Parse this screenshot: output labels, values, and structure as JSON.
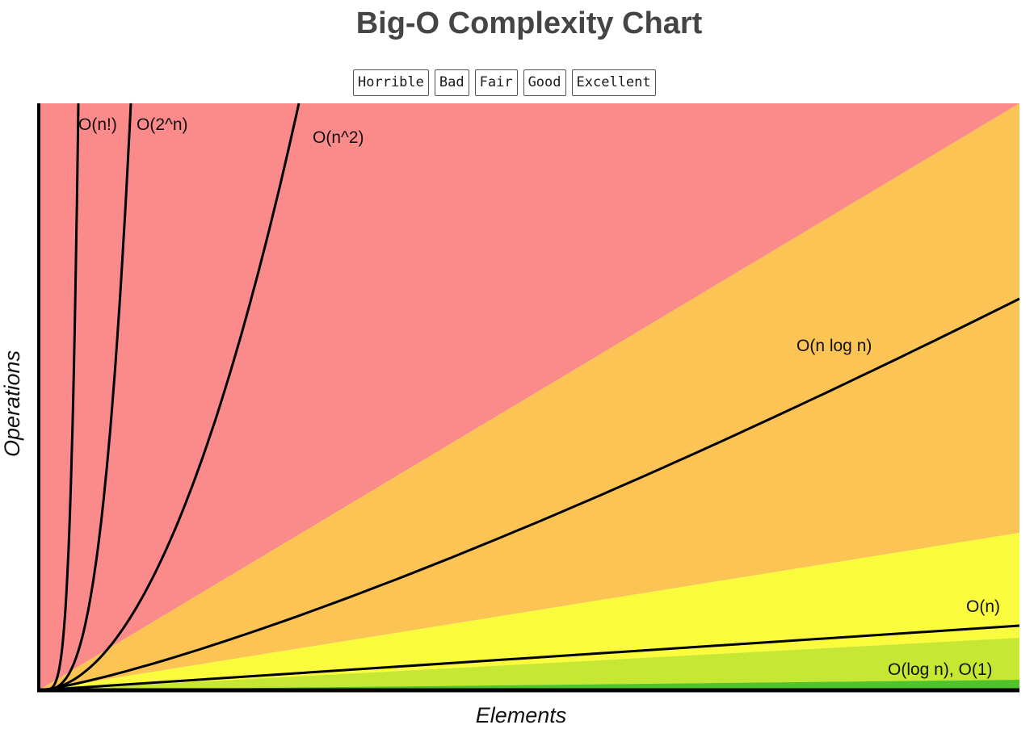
{
  "chart_data": {
    "type": "area",
    "title": "Big-O Complexity Chart",
    "xlabel": "Elements",
    "ylabel": "Operations",
    "xlim": [
      0,
      100
    ],
    "ylim": [
      0,
      100
    ],
    "grid": false,
    "legend_placement": "top-center",
    "legend": [
      {
        "label": "Horrible",
        "color": "#fb8a8a"
      },
      {
        "label": "Bad",
        "color": "#fbc455"
      },
      {
        "label": "Fair",
        "color": "#fbfb3e"
      },
      {
        "label": "Good",
        "color": "#c7e832"
      },
      {
        "label": "Excellent",
        "color": "#4fc42a"
      }
    ],
    "regions": [
      {
        "name": "Horrible",
        "color": "#fb8a8a"
      },
      {
        "name": "Bad",
        "color": "#fbc455"
      },
      {
        "name": "Fair",
        "color": "#fbfb3e"
      },
      {
        "name": "Good",
        "color": "#c7e832"
      },
      {
        "name": "Excellent",
        "color": "#4fc42a"
      }
    ],
    "curves": [
      {
        "label": "O(n!)",
        "complexity": "factorial"
      },
      {
        "label": "O(2^n)",
        "complexity": "exponential"
      },
      {
        "label": "O(n^2)",
        "complexity": "quadratic"
      },
      {
        "label": "O(n log n)",
        "complexity": "linearithmic"
      },
      {
        "label": "O(n)",
        "complexity": "linear"
      },
      {
        "label": "O(log n), O(1)",
        "complexity": "logarithmic-constant"
      }
    ]
  }
}
